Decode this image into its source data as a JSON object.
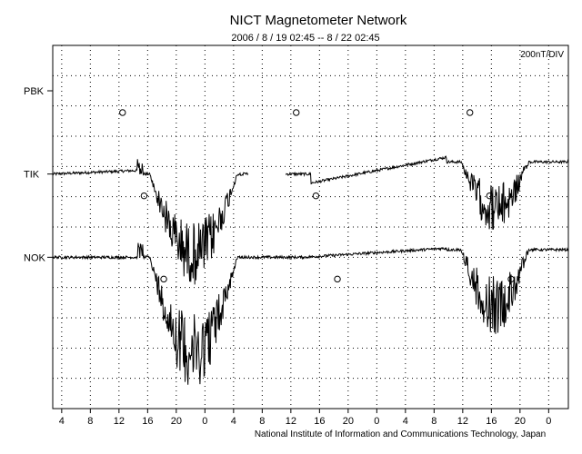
{
  "chart_data": {
    "type": "line",
    "title": "NICT Magnetometer Network",
    "subtitle": "2006 / 8 / 19   02:45 --  8 / 22   02:45",
    "scale_label": "200nT/DIV",
    "footer": "National Institute of Information and Communications Technology, Japan",
    "x_unit": "hours since 2006-08-19 02:45 (UT)",
    "x_range": [
      0,
      72
    ],
    "x_tick_hours": [
      1.25,
      5.25,
      9.25,
      13.25,
      17.25,
      21.25,
      25.25,
      29.25,
      33.25,
      37.25,
      41.25,
      45.25,
      49.25,
      53.25,
      57.25,
      61.25,
      65.25,
      69.25
    ],
    "x_tick_labels": [
      "4",
      "8",
      "12",
      "16",
      "20",
      "0",
      "4",
      "8",
      "12",
      "16",
      "20",
      "0",
      "4",
      "8",
      "12",
      "16",
      "20",
      "0"
    ],
    "y_unit": "nT",
    "y_range": [
      -1100,
      1300
    ],
    "y_grid_step": 200,
    "grid": true,
    "stations": [
      {
        "name": "PBK",
        "baseline": 1000,
        "data_visible": false,
        "local_noon_hours": [
          9.75,
          34.0,
          58.25
        ]
      },
      {
        "name": "TIK",
        "baseline": 450,
        "data_visible": true,
        "local_noon_hours": [
          12.75,
          36.75,
          61.0
        ]
      },
      {
        "name": "NOK",
        "baseline": -100,
        "data_visible": true,
        "local_noon_hours": [
          15.5,
          39.75,
          64.0
        ]
      }
    ]
  }
}
